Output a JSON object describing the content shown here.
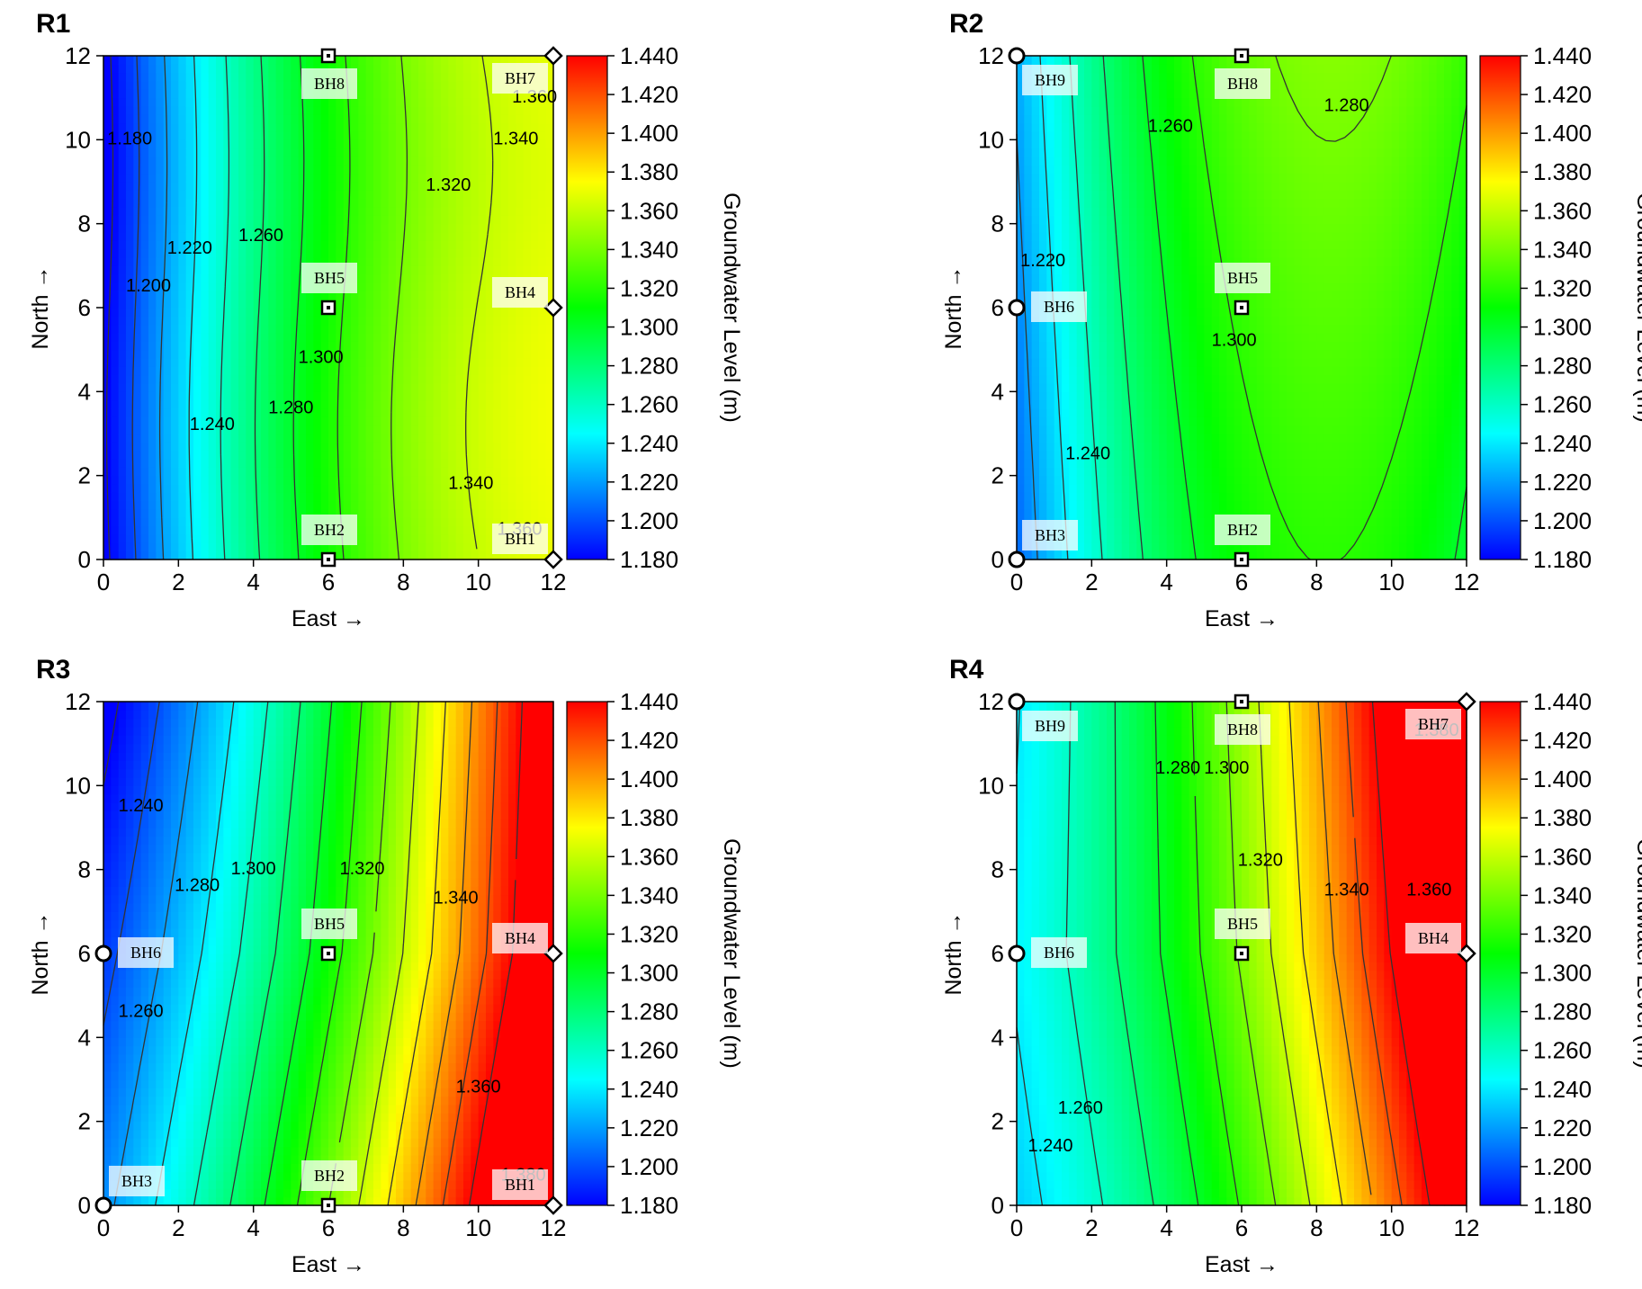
{
  "colorbar": {
    "title": "Groundwater Level (m)",
    "ticks": [
      "1.440",
      "1.420",
      "1.400",
      "1.380",
      "1.360",
      "1.340",
      "1.320",
      "1.300",
      "1.280",
      "1.260",
      "1.240",
      "1.220",
      "1.200",
      "1.180"
    ],
    "colors": [
      "#0000ff",
      "#0080ff",
      "#00ffff",
      "#00ff80",
      "#00ff00",
      "#80ff00",
      "#ffff00",
      "#ff8000",
      "#ff0000"
    ]
  },
  "axes": {
    "xlabel": "East →",
    "ylabel": "North →",
    "xticks": [
      "0",
      "2",
      "4",
      "6",
      "8",
      "10",
      "12"
    ],
    "yticks": [
      "0",
      "2",
      "4",
      "6",
      "8",
      "10",
      "12"
    ]
  },
  "chart_data": [
    {
      "type": "heatmap",
      "title": "R1",
      "xlim": [
        0,
        12
      ],
      "ylim": [
        0,
        12
      ],
      "zlim": [
        1.18,
        1.44
      ],
      "contour_labels": [
        "1.180",
        "1.200",
        "1.220",
        "1.240",
        "1.260",
        "1.280",
        "1.300",
        "1.320",
        "1.340",
        "1.340",
        "1.360",
        "1.360"
      ],
      "boreholes": [
        {
          "name": "BH8",
          "x": 6,
          "y": 12,
          "marker": "square"
        },
        {
          "name": "BH7",
          "x": 12,
          "y": 12,
          "marker": "diamond"
        },
        {
          "name": "BH5",
          "x": 6,
          "y": 6,
          "marker": "square"
        },
        {
          "name": "BH4",
          "x": 12,
          "y": 6,
          "marker": "diamond"
        },
        {
          "name": "BH2",
          "x": 6,
          "y": 0,
          "marker": "square"
        },
        {
          "name": "BH1",
          "x": 12,
          "y": 0,
          "marker": "diamond"
        }
      ]
    },
    {
      "type": "heatmap",
      "title": "R2",
      "xlim": [
        0,
        12
      ],
      "ylim": [
        0,
        12
      ],
      "zlim": [
        1.18,
        1.44
      ],
      "contour_labels": [
        "1.260",
        "1.280",
        "1.220",
        "1.300",
        "1.240"
      ],
      "boreholes": [
        {
          "name": "BH9",
          "x": 0,
          "y": 12,
          "marker": "circle"
        },
        {
          "name": "BH8",
          "x": 6,
          "y": 12,
          "marker": "square"
        },
        {
          "name": "BH6",
          "x": 0,
          "y": 6,
          "marker": "circle"
        },
        {
          "name": "BH5",
          "x": 6,
          "y": 6,
          "marker": "square"
        },
        {
          "name": "BH3",
          "x": 0,
          "y": 0,
          "marker": "circle"
        },
        {
          "name": "BH2",
          "x": 6,
          "y": 0,
          "marker": "square"
        }
      ]
    },
    {
      "type": "heatmap",
      "title": "R3",
      "xlim": [
        0,
        12
      ],
      "ylim": [
        0,
        12
      ],
      "zlim": [
        1.18,
        1.44
      ],
      "contour_labels": [
        "1.240",
        "1.320",
        "1.300",
        "1.340",
        "1.280",
        "1.260",
        "1.360",
        "1.380"
      ],
      "boreholes": [
        {
          "name": "BH6",
          "x": 0,
          "y": 6,
          "marker": "circle"
        },
        {
          "name": "BH5",
          "x": 6,
          "y": 6,
          "marker": "square"
        },
        {
          "name": "BH4",
          "x": 12,
          "y": 6,
          "marker": "diamond"
        },
        {
          "name": "BH3",
          "x": 0,
          "y": 0,
          "marker": "circle"
        },
        {
          "name": "BH2",
          "x": 6,
          "y": 0,
          "marker": "square"
        },
        {
          "name": "BH1",
          "x": 12,
          "y": 0,
          "marker": "diamond"
        }
      ]
    },
    {
      "type": "heatmap",
      "title": "R4",
      "xlim": [
        0,
        12
      ],
      "ylim": [
        0,
        12
      ],
      "zlim": [
        1.18,
        1.44
      ],
      "contour_labels": [
        "1.280",
        "1.300",
        "1.380",
        "1.320",
        "1.340",
        "1.360",
        "1.260",
        "1.240"
      ],
      "boreholes": [
        {
          "name": "BH9",
          "x": 0,
          "y": 12,
          "marker": "circle"
        },
        {
          "name": "BH8",
          "x": 6,
          "y": 12,
          "marker": "square"
        },
        {
          "name": "BH7",
          "x": 12,
          "y": 12,
          "marker": "diamond"
        },
        {
          "name": "BH6",
          "x": 0,
          "y": 6,
          "marker": "circle"
        },
        {
          "name": "BH5",
          "x": 6,
          "y": 6,
          "marker": "square"
        },
        {
          "name": "BH4",
          "x": 12,
          "y": 6,
          "marker": "diamond"
        }
      ]
    }
  ]
}
